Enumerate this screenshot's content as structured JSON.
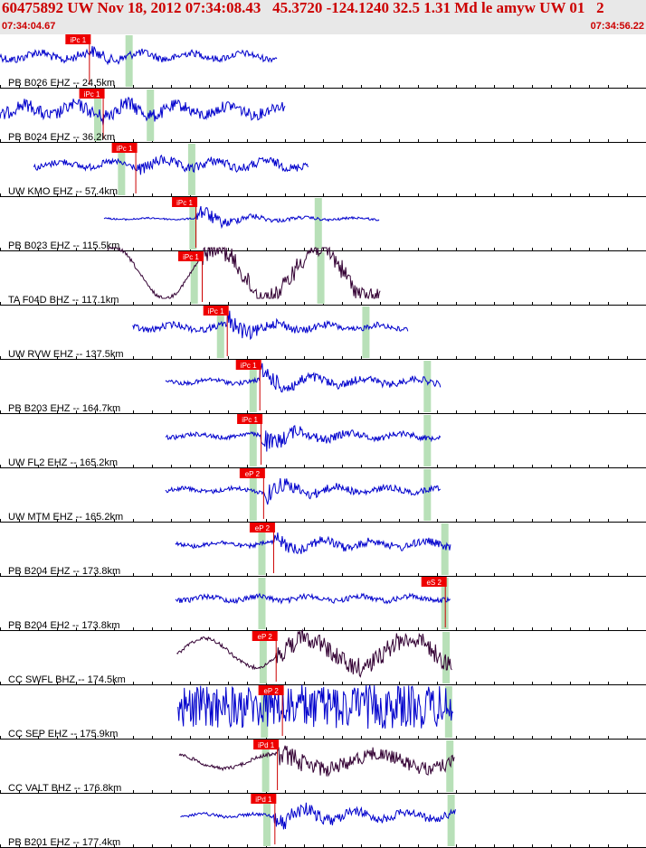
{
  "header": {
    "title": "60475892 UW Nov 18, 2012 07:34:08.43   45.3720 -124.1240 32.5 1.31 Md le amyw UW 01   2",
    "time_start": "07:34:04.67",
    "time_end": "07:34:56.22"
  },
  "colors": {
    "header_text": "#cc0000",
    "header_bg": "#e8e8e8",
    "trace_blue": "#0000cc",
    "trace_purple": "#330033",
    "pick_box": "#ee0000",
    "pick_line": "#cc0000",
    "window_band": "#b8e0b8"
  },
  "chart_data": {
    "type": "seismogram",
    "time_range_s": [
      0,
      51.55
    ],
    "traces": [
      {
        "label": "PB B026 EHZ -- 24.5km",
        "pick": "iPc 1",
        "color": "#0000cc",
        "start": 0,
        "end": 22.1,
        "onset": 7.1,
        "band1": 10.3,
        "band2": null,
        "amp_pre": 8,
        "amp_coda": 12,
        "amp_post": 6,
        "style": "blue"
      },
      {
        "label": "PB B024 EHZ -- 36.2km",
        "pick": "iPc 1",
        "color": "#0000cc",
        "start": 0,
        "end": 22.8,
        "onset": 8.2,
        "band1": 7.8,
        "band2": 12.0,
        "amp_pre": 12,
        "amp_coda": 18,
        "amp_post": 10,
        "style": "blue"
      },
      {
        "label": "UW KMO EHZ -- 57.4km",
        "pick": "iPc 1",
        "color": "#0000cc",
        "start": 2.7,
        "end": 24.6,
        "onset": 10.8,
        "band1": 9.7,
        "band2": 15.3,
        "amp_pre": 6,
        "amp_coda": 12,
        "amp_post": 8,
        "style": "blue"
      },
      {
        "label": "PB B023 EHZ -- 115.5km",
        "pick": "iPc 1",
        "color": "#0000cc",
        "start": 8.3,
        "end": 30.3,
        "onset": 15.6,
        "band1": 15.4,
        "band2": 25.4,
        "amp_pre": 1.5,
        "amp_coda": 18,
        "amp_post": 2,
        "style": "blue"
      },
      {
        "label": "TA F04D BHZ -- 117.1km",
        "pick": "iPc 1",
        "color": "#330033",
        "start": 8.6,
        "end": 30.4,
        "onset": 16.1,
        "band1": 15.5,
        "band2": 25.6,
        "amp_pre": 28,
        "amp_coda": 18,
        "amp_post": 18,
        "style": "slow"
      },
      {
        "label": "UW RVW EHZ -- 137.5km",
        "pick": "iPc 1",
        "color": "#0000cc",
        "start": 10.6,
        "end": 32.6,
        "onset": 18.1,
        "band1": 17.6,
        "band2": 29.2,
        "amp_pre": 6,
        "amp_coda": 20,
        "amp_post": 5,
        "style": "blue"
      },
      {
        "label": "PB B203 EHZ -- 164.7km",
        "pick": "iPc 1",
        "color": "#0000cc",
        "start": 13.2,
        "end": 35.2,
        "onset": 20.7,
        "band1": 20.2,
        "band2": 34.1,
        "amp_pre": 4,
        "amp_coda": 20,
        "amp_post": 6,
        "style": "blue"
      },
      {
        "label": "UW FL2 EHZ -- 165.2km",
        "pick": "iPc 1",
        "color": "#0000cc",
        "start": 13.2,
        "end": 35.2,
        "onset": 20.8,
        "band1": 20.2,
        "band2": 34.1,
        "amp_pre": 4,
        "amp_coda": 22,
        "amp_post": 5,
        "style": "blue"
      },
      {
        "label": "UW MTM EHZ -- 165.2km",
        "pick": "eP 2",
        "color": "#0000cc",
        "start": 13.2,
        "end": 35.2,
        "onset": 21.0,
        "band1": 20.2,
        "band2": 34.1,
        "amp_pre": 4,
        "amp_coda": 20,
        "amp_post": 5,
        "style": "blue"
      },
      {
        "label": "PB B204 EHZ -- 173.8km",
        "pick": "eP 2",
        "color": "#0000cc",
        "start": 14.0,
        "end": 36.0,
        "onset": 21.8,
        "band1": 20.9,
        "band2": 35.5,
        "amp_pre": 4,
        "amp_coda": 14,
        "amp_post": 7,
        "style": "blue"
      },
      {
        "label": "PB B204 EH2 -- 173.8km",
        "pick": "eS 2",
        "color": "#0000cc",
        "start": 14.0,
        "end": 36.0,
        "onset": null,
        "band1": 20.9,
        "band2": 35.5,
        "amp_pre": 5,
        "amp_coda": 12,
        "amp_post": 9,
        "style": "blue"
      },
      {
        "label": "CC SWFL BHZ -- 174.5km",
        "pick": "eP 2",
        "color": "#330033",
        "start": 14.1,
        "end": 36.1,
        "onset": 22.0,
        "band1": 21.0,
        "band2": 35.6,
        "amp_pre": 16,
        "amp_coda": 18,
        "amp_post": 18,
        "style": "slow"
      },
      {
        "label": "CC SEP EHZ -- 175.9km",
        "pick": "eP 2",
        "color": "#0000cc",
        "start": 14.2,
        "end": 36.2,
        "onset": 22.5,
        "band1": 21.1,
        "band2": 35.8,
        "amp_pre": 24,
        "amp_coda": 26,
        "amp_post": 24,
        "style": "dense"
      },
      {
        "label": "CC VALT BHZ -- 176.8km",
        "pick": "iPd 1",
        "color": "#330033",
        "start": 14.3,
        "end": 36.3,
        "onset": 22.1,
        "band1": 21.2,
        "band2": 35.9,
        "amp_pre": 10,
        "amp_coda": 22,
        "amp_post": 12,
        "style": "slowdense"
      },
      {
        "label": "PB B201 EHZ -- 177.4km",
        "pick": "iPd 1",
        "color": "#0000cc",
        "start": 14.4,
        "end": 36.4,
        "onset": 21.9,
        "band1": 21.3,
        "band2": 36.0,
        "amp_pre": 3,
        "amp_coda": 22,
        "amp_post": 7,
        "style": "blue"
      }
    ]
  }
}
